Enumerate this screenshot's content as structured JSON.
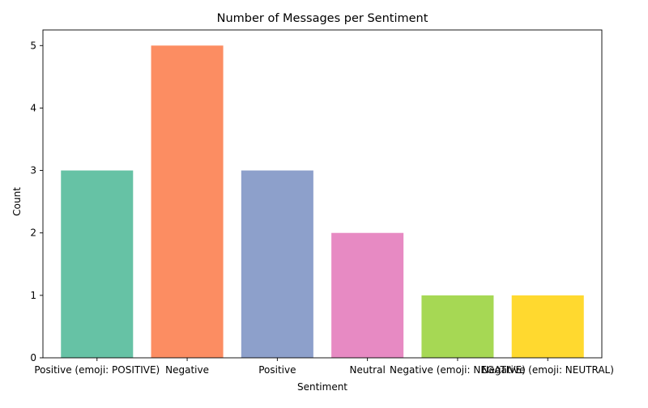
{
  "chart_data": {
    "type": "bar",
    "title": "Number of Messages per Sentiment",
    "xlabel": "Sentiment",
    "ylabel": "Count",
    "categories": [
      "Positive (emoji: POSITIVE)",
      "Negative",
      "Positive",
      "Neutral",
      "Negative (emoji: NEGATIVE)",
      "Negative (emoji: NEUTRAL)"
    ],
    "values": [
      3,
      5,
      3,
      2,
      1,
      1
    ],
    "colors": [
      "#66c2a5",
      "#fc8d62",
      "#8da0cb",
      "#e78ac3",
      "#a6d854",
      "#ffd92f"
    ],
    "ylim": [
      0,
      5.25
    ],
    "yticks": [
      0,
      1,
      2,
      3,
      4,
      5
    ],
    "grid": false,
    "legend": "none"
  }
}
